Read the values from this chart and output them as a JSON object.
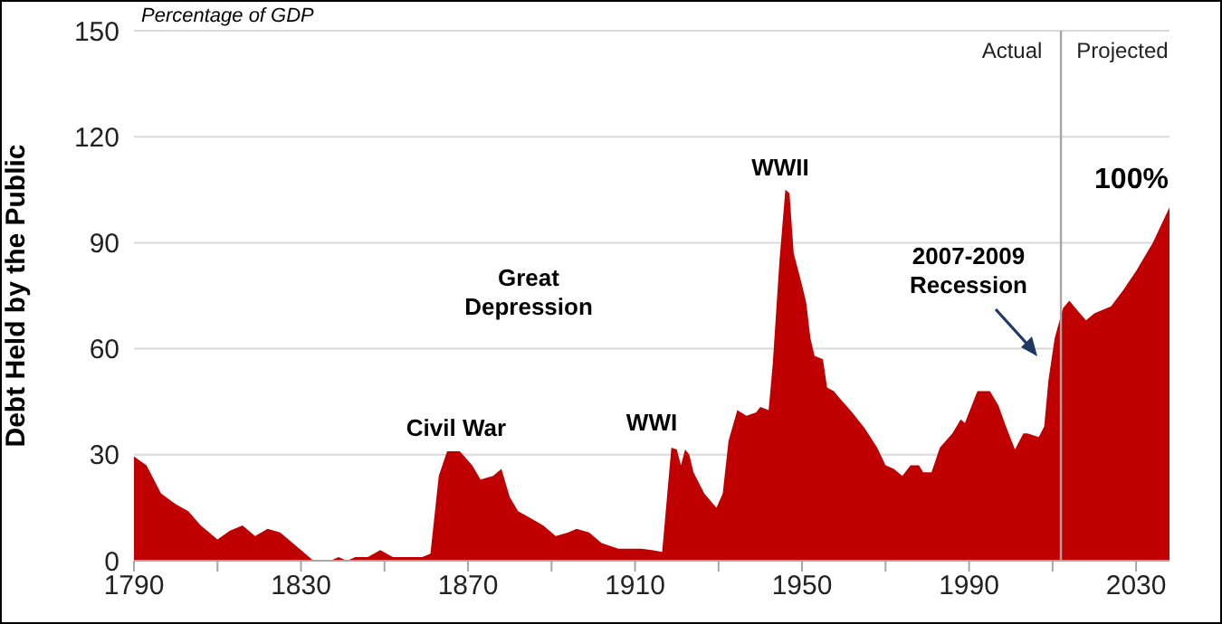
{
  "chart_data": {
    "type": "area",
    "subtitle": "Percentage of GDP",
    "ylabel": "Debt Held by the Public",
    "x": [
      1790,
      1793,
      1796.5,
      1800,
      1803,
      1806,
      1810,
      1813,
      1816,
      1819,
      1822,
      1825,
      1827,
      1830,
      1833,
      1837,
      1839,
      1841,
      1843,
      1846,
      1849,
      1852,
      1859,
      1861,
      1863,
      1865,
      1868,
      1871,
      1873,
      1876,
      1878,
      1880,
      1882,
      1885,
      1888,
      1891,
      1894,
      1896,
      1899,
      1902,
      1906,
      1911.5,
      1914,
      1916.5,
      1918.7,
      1920,
      1921,
      1922,
      1923,
      1924,
      1926.6,
      1929.5,
      1931,
      1932.4,
      1934.5,
      1936.7,
      1939,
      1940,
      1942,
      1943,
      1944.6,
      1946,
      1947,
      1948,
      1950,
      1951,
      1952,
      1953,
      1955,
      1956,
      1957.6,
      1959,
      1962,
      1965,
      1968,
      1970,
      1972,
      1974,
      1976,
      1978,
      1979,
      1981,
      1983,
      1986,
      1988,
      1989,
      1992,
      1995,
      1997,
      1999,
      2001,
      2003,
      2004,
      2006.7,
      2008,
      2009,
      2010.5,
      2012.5,
      2014,
      2015.5,
      2018,
      2020,
      2024,
      2027,
      2030,
      2034,
      2038
    ],
    "series": [
      {
        "color": "#c00000",
        "values": [
          29.5,
          27,
          19,
          16,
          14,
          10,
          6,
          8.5,
          10,
          7,
          9,
          8,
          6,
          3,
          0,
          0,
          1,
          0,
          1,
          1,
          3,
          1,
          1,
          2,
          24,
          31,
          31,
          27,
          23,
          24,
          26,
          18,
          14,
          12,
          10,
          7,
          8,
          9,
          8,
          5,
          3.4,
          3.4,
          3,
          2.5,
          32,
          31.5,
          27,
          31.5,
          30,
          25,
          19,
          15,
          19,
          34,
          42.6,
          41,
          42,
          43.5,
          42.6,
          56,
          85,
          105,
          104,
          87,
          78,
          73,
          63,
          58,
          57,
          49,
          48,
          46,
          42,
          37.5,
          32,
          27,
          26,
          24,
          27,
          27,
          25,
          25,
          32,
          36,
          40,
          39,
          48,
          48,
          44,
          37.5,
          31.5,
          36,
          36,
          35,
          38,
          51,
          63,
          71.5,
          73.6,
          71.5,
          68,
          70,
          72,
          76.7,
          82,
          90,
          100
        ]
      }
    ],
    "xlim": [
      1790,
      2038
    ],
    "xticks": [
      1790,
      {
        "value": 1810,
        "label": null
      },
      1830,
      {
        "value": 1850,
        "label": null
      },
      1870,
      {
        "value": 1890,
        "label": null
      },
      1910,
      {
        "value": 1930,
        "label": null
      },
      1950,
      {
        "value": 1970,
        "label": null
      },
      1990,
      {
        "value": 2010,
        "label": null
      },
      2030
    ],
    "ylim": [
      0,
      150
    ],
    "yticks": [
      0,
      30,
      60,
      90,
      120,
      150
    ],
    "grid": "y",
    "legend": false,
    "ref_lines": [
      {
        "axis": "x",
        "value": 2012,
        "color": "#a6a6a6"
      }
    ],
    "annotations": [
      "Civil War",
      "WWI",
      "Great Depression",
      "WWII",
      "2007-2009 Recession",
      "100%",
      "Actual",
      "Projected"
    ]
  }
}
